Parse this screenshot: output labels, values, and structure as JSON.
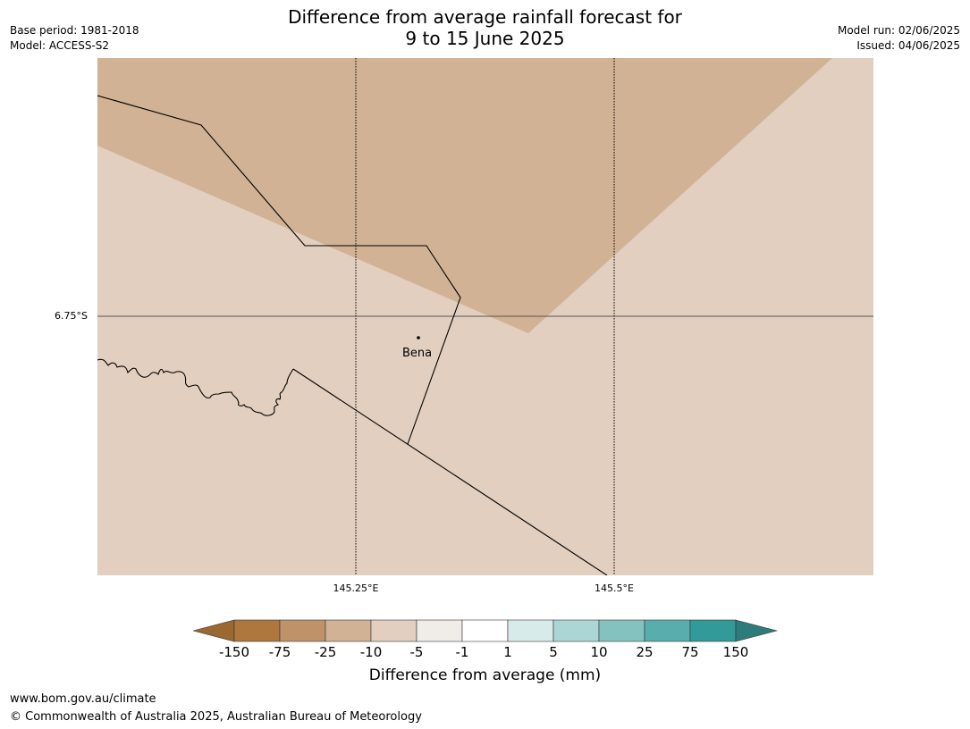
{
  "header": {
    "base_period": "Base period: 1981-2018",
    "model": "Model: ACCESS-S2",
    "title_line1": "Difference from average rainfall forecast for",
    "title_line2": "9 to 15 June 2025",
    "model_run": "Model run: 02/06/2025",
    "issued": "Issued: 04/06/2025"
  },
  "map": {
    "latitude_label": "6.75°S",
    "longitude_labels": [
      "145.25°E",
      "145.5°E"
    ],
    "place_name": "Bena",
    "colors": {
      "background_zone": "#e2cfbf",
      "drier_zone": "#d1b294"
    }
  },
  "colorbar": {
    "tick_labels": [
      "-150",
      "-75",
      "-25",
      "-10",
      "-5",
      "-1",
      "1",
      "5",
      "10",
      "25",
      "75",
      "150"
    ],
    "colors": [
      "#9b6832",
      "#ae773d",
      "#c09269",
      "#d1b294",
      "#e2cfbf",
      "#f0ece8",
      "#ffffff",
      "#d7ebeb",
      "#acd6d6",
      "#84c2c0",
      "#5aadad",
      "#339a9a",
      "#2d7b7b"
    ],
    "label": "Difference from average (mm)"
  },
  "footer": {
    "url": "www.bom.gov.au/climate",
    "copyright": "© Commonwealth of Australia 2025, Australian Bureau of Meteorology"
  }
}
